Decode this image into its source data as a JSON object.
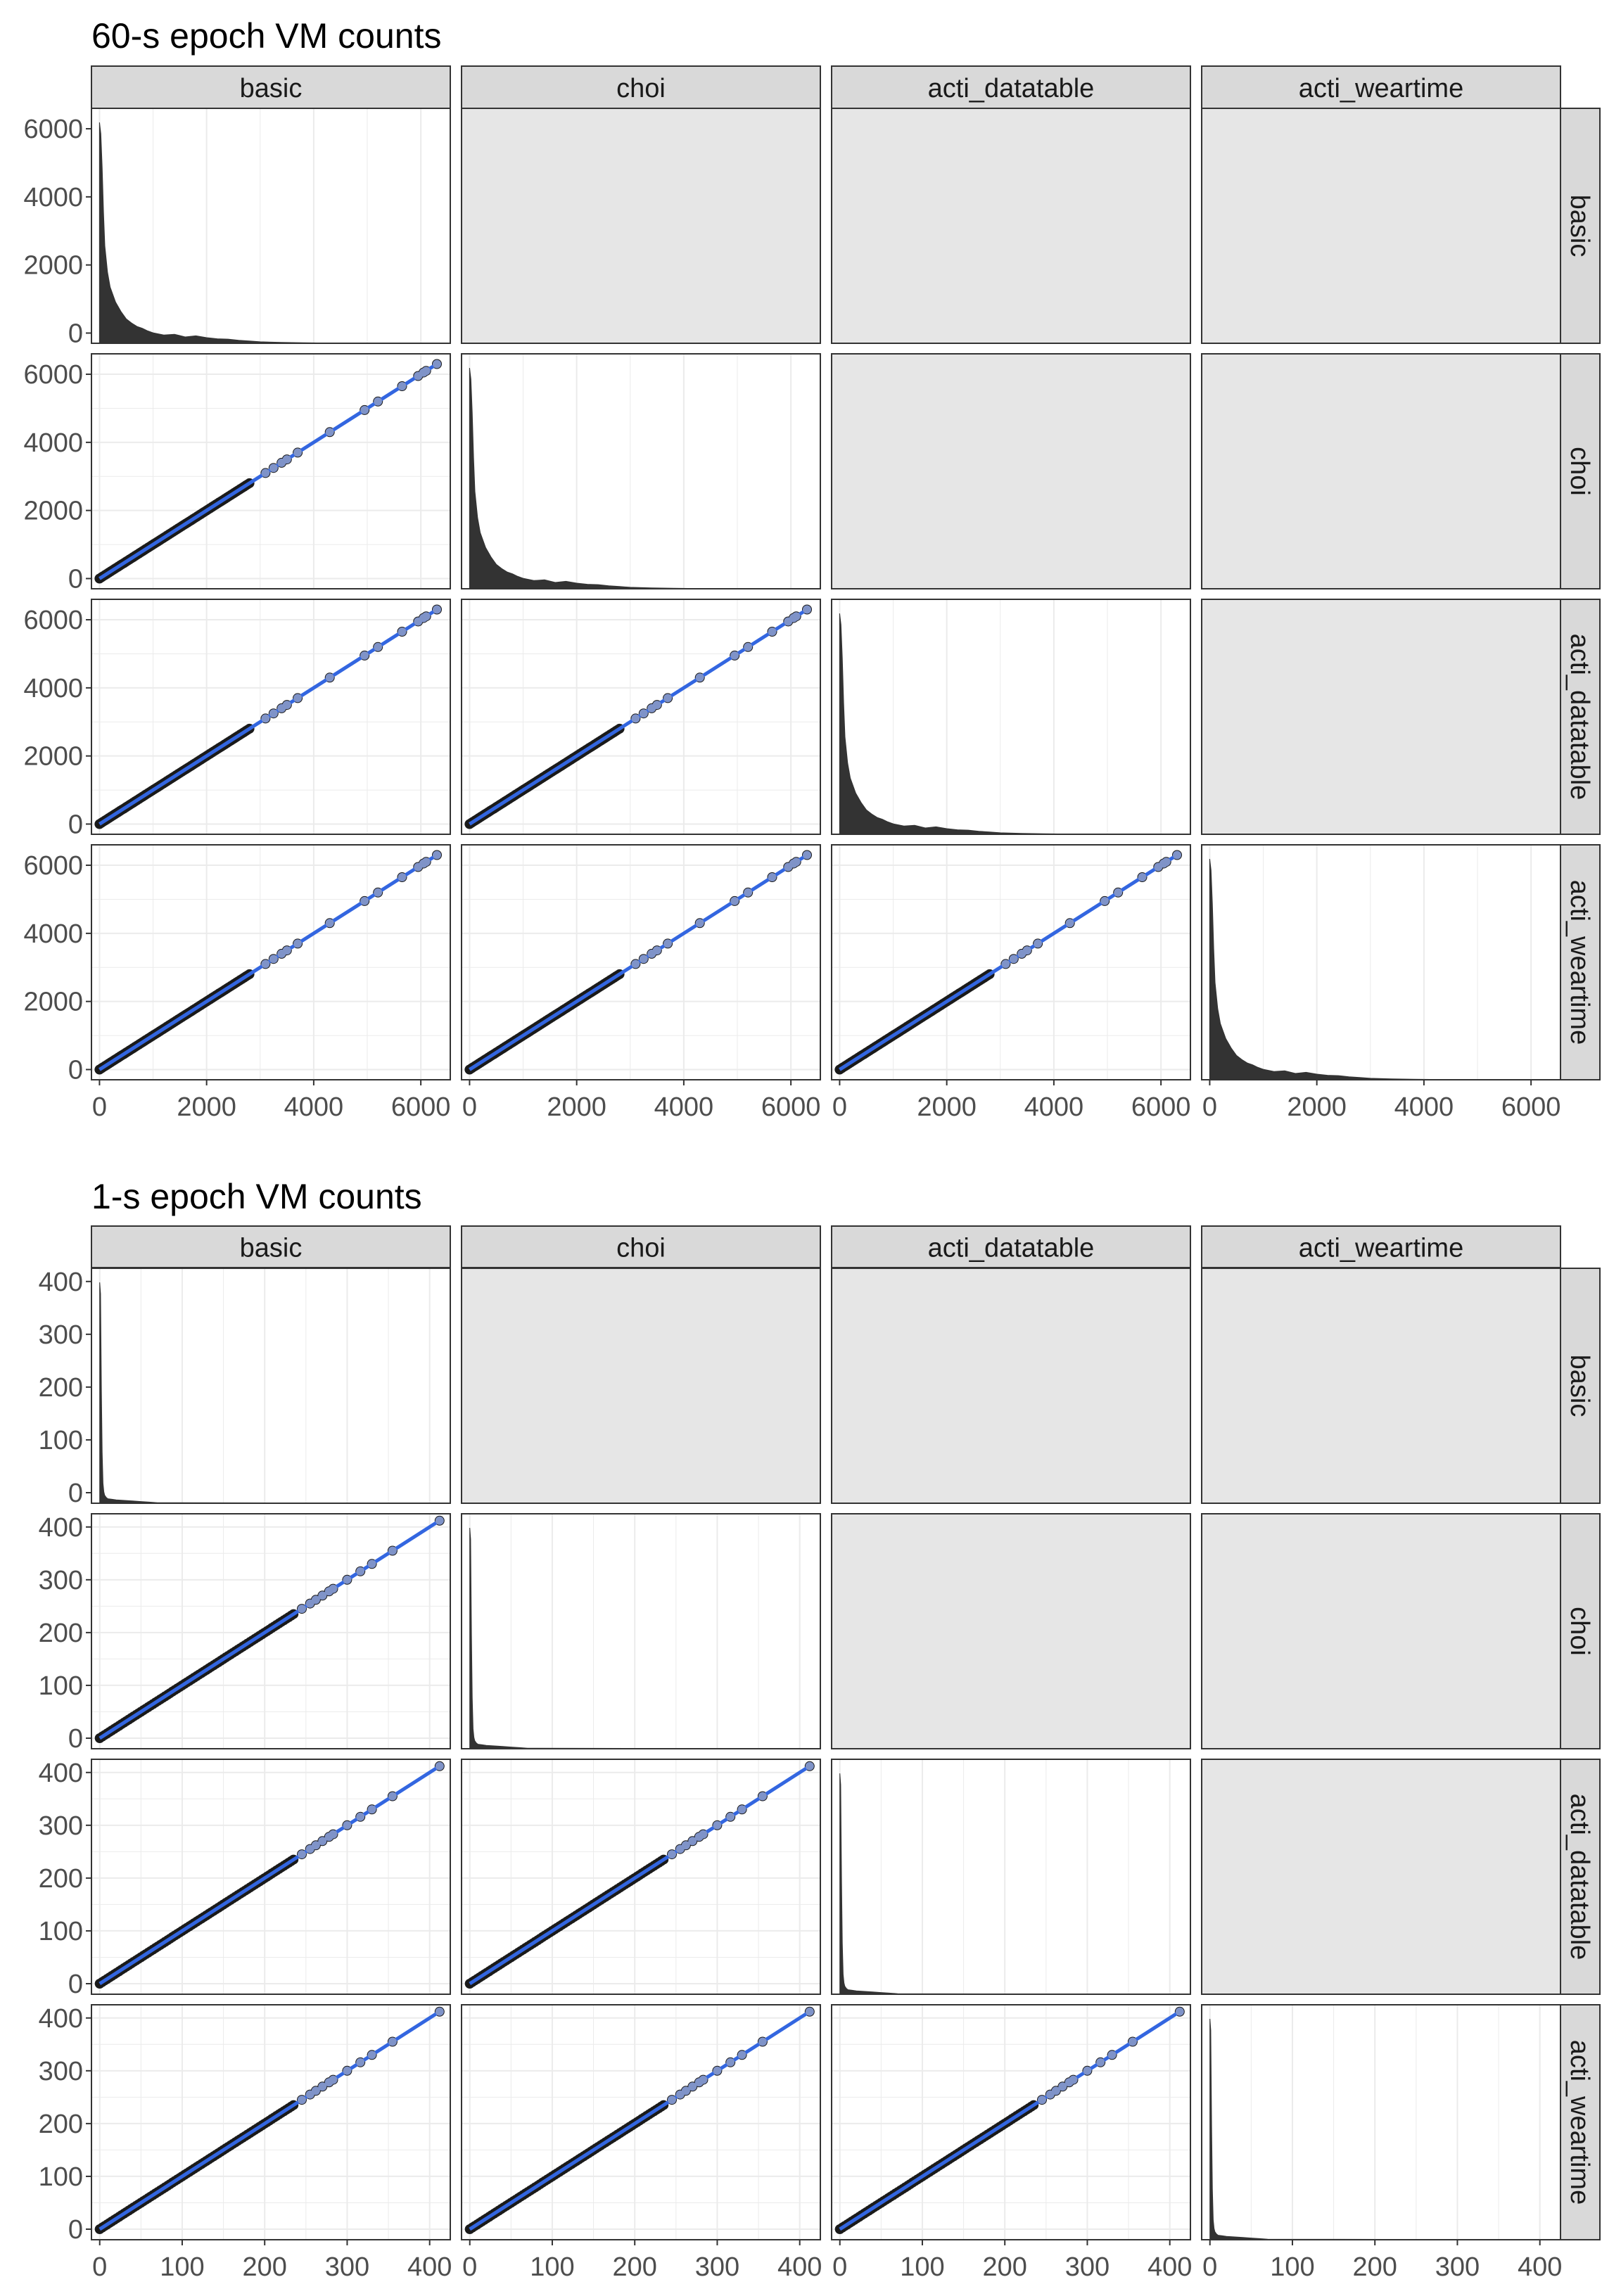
{
  "variables": [
    "basic",
    "choi",
    "acti_datatable",
    "acti_weartime"
  ],
  "colors": {
    "panel_empty": "#e6e6e6",
    "strip_fill": "#d9d9d9",
    "grid": "#ebebeb",
    "points": "#1a1a1a",
    "fit_line": "#3366e0",
    "fit_points": "#7f93c8",
    "density_fill": "#333333",
    "border": "#333333"
  },
  "chart_data": [
    {
      "type": "scatter-matrix",
      "title": "60-s epoch VM counts",
      "variables": [
        "basic",
        "choi",
        "acti_datatable",
        "acti_weartime"
      ],
      "axis_ticks": [
        0,
        2000,
        4000,
        6000
      ],
      "axis_tick_labels": [
        "0",
        "2000",
        "4000",
        "6000"
      ],
      "xlim": [
        -150,
        6550
      ],
      "ylim": [
        -300,
        6600
      ],
      "grid": true,
      "diagonal": {
        "type": "histogram",
        "x": [
          0,
          25,
          50,
          75,
          100,
          150,
          200,
          300,
          400,
          500,
          600,
          700,
          800,
          900,
          1000,
          1200,
          1400,
          1600,
          1800,
          2000,
          2200,
          2400,
          2600,
          2800,
          3000,
          3400,
          3800,
          4200,
          5000,
          6000,
          6300
        ],
        "counts": [
          5900,
          5600,
          4700,
          3500,
          2600,
          1900,
          1500,
          1100,
          850,
          650,
          540,
          450,
          400,
          330,
          280,
          220,
          240,
          170,
          200,
          150,
          120,
          110,
          80,
          60,
          40,
          25,
          15,
          8,
          3,
          1,
          0
        ]
      },
      "lower_triangle": {
        "type": "scatter",
        "relation": "y = x",
        "dense_range": [
          0,
          2800
        ],
        "sparse_points": [
          3100,
          3250,
          3400,
          3500,
          3700,
          4300,
          4950,
          5200,
          5650,
          5950,
          6050,
          6100,
          6300
        ],
        "fit_line": {
          "from": 0,
          "to": 6300,
          "slope": 1,
          "intercept": 0
        }
      }
    },
    {
      "type": "scatter-matrix",
      "title": "1-s epoch VM counts",
      "variables": [
        "basic",
        "choi",
        "acti_datatable",
        "acti_weartime"
      ],
      "axis_ticks": [
        0,
        100,
        200,
        300,
        400
      ],
      "axis_tick_labels": [
        "0",
        "100",
        "200",
        "300",
        "400"
      ],
      "xlim": [
        -10,
        425
      ],
      "ylim": [
        -20,
        425
      ],
      "grid": true,
      "diagonal": {
        "type": "histogram",
        "x": [
          0,
          1,
          2,
          3,
          4,
          5,
          6,
          8,
          10,
          15,
          20,
          30,
          40,
          50,
          60,
          70,
          400
        ],
        "counts": [
          390,
          370,
          200,
          90,
          35,
          20,
          14,
          10,
          8,
          7,
          6,
          5,
          4,
          3,
          2,
          1,
          0
        ]
      },
      "lower_triangle": {
        "type": "scatter",
        "relation": "y = x",
        "dense_range": [
          0,
          235
        ],
        "sparse_points": [
          245,
          255,
          262,
          270,
          278,
          283,
          300,
          316,
          330,
          355,
          412
        ],
        "fit_line": {
          "from": 0,
          "to": 412,
          "slope": 1,
          "intercept": 0
        }
      }
    }
  ]
}
